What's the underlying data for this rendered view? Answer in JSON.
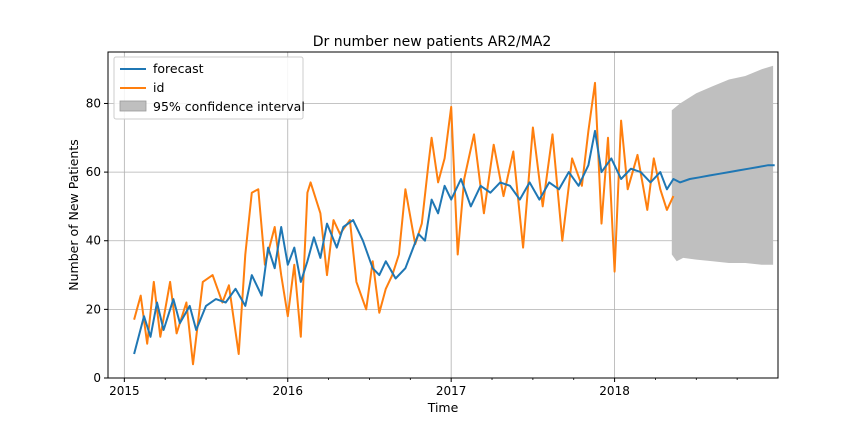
{
  "chart_data": {
    "type": "line",
    "title": "Dr number new patients AR2/MA2",
    "xlabel": "Time",
    "ylabel": "Number of New Patients",
    "xlim": [
      2014.9,
      2019.0
    ],
    "ylim": [
      0,
      95
    ],
    "grid": true,
    "legend_position": "top-left",
    "x_ticks": [
      {
        "value": 2015,
        "label": "2015"
      },
      {
        "value": 2016,
        "label": "2016"
      },
      {
        "value": 2017,
        "label": "2017"
      },
      {
        "value": 2018,
        "label": "2018"
      }
    ],
    "y_ticks": [
      {
        "value": 0,
        "label": "0"
      },
      {
        "value": 20,
        "label": "20"
      },
      {
        "value": 40,
        "label": "40"
      },
      {
        "value": 60,
        "label": "60"
      },
      {
        "value": 80,
        "label": "80"
      }
    ],
    "series": [
      {
        "name": "forecast",
        "color": "#1f77b4",
        "points": [
          [
            2015.06,
            7
          ],
          [
            2015.12,
            18
          ],
          [
            2015.16,
            12
          ],
          [
            2015.2,
            22
          ],
          [
            2015.24,
            14
          ],
          [
            2015.3,
            23
          ],
          [
            2015.34,
            16
          ],
          [
            2015.4,
            21
          ],
          [
            2015.44,
            14
          ],
          [
            2015.5,
            21
          ],
          [
            2015.56,
            23
          ],
          [
            2015.62,
            22
          ],
          [
            2015.68,
            26
          ],
          [
            2015.74,
            21
          ],
          [
            2015.78,
            30
          ],
          [
            2015.84,
            24
          ],
          [
            2015.88,
            38
          ],
          [
            2015.92,
            32
          ],
          [
            2015.96,
            44
          ],
          [
            2016.0,
            33
          ],
          [
            2016.04,
            38
          ],
          [
            2016.08,
            28
          ],
          [
            2016.12,
            34
          ],
          [
            2016.16,
            41
          ],
          [
            2016.2,
            35
          ],
          [
            2016.24,
            45
          ],
          [
            2016.3,
            38
          ],
          [
            2016.34,
            44
          ],
          [
            2016.4,
            46
          ],
          [
            2016.46,
            40
          ],
          [
            2016.52,
            32
          ],
          [
            2016.56,
            30
          ],
          [
            2016.6,
            34
          ],
          [
            2016.66,
            29
          ],
          [
            2016.72,
            32
          ],
          [
            2016.8,
            42
          ],
          [
            2016.84,
            40
          ],
          [
            2016.88,
            52
          ],
          [
            2016.92,
            48
          ],
          [
            2016.96,
            56
          ],
          [
            2017.0,
            52
          ],
          [
            2017.06,
            58
          ],
          [
            2017.12,
            50
          ],
          [
            2017.18,
            56
          ],
          [
            2017.24,
            54
          ],
          [
            2017.3,
            57
          ],
          [
            2017.36,
            56
          ],
          [
            2017.42,
            52
          ],
          [
            2017.48,
            57
          ],
          [
            2017.54,
            52
          ],
          [
            2017.6,
            57
          ],
          [
            2017.66,
            55
          ],
          [
            2017.72,
            60
          ],
          [
            2017.78,
            56
          ],
          [
            2017.84,
            62
          ],
          [
            2017.88,
            72
          ],
          [
            2017.92,
            60
          ],
          [
            2017.98,
            64
          ],
          [
            2018.04,
            58
          ],
          [
            2018.1,
            61
          ],
          [
            2018.16,
            60
          ],
          [
            2018.22,
            57
          ],
          [
            2018.28,
            60
          ],
          [
            2018.32,
            55
          ],
          [
            2018.36,
            58
          ],
          [
            2018.4,
            57
          ],
          [
            2018.46,
            58
          ],
          [
            2018.52,
            58.5
          ],
          [
            2018.58,
            59
          ],
          [
            2018.64,
            59.5
          ],
          [
            2018.7,
            60
          ],
          [
            2018.76,
            60.5
          ],
          [
            2018.82,
            61
          ],
          [
            2018.88,
            61.5
          ],
          [
            2018.94,
            62
          ],
          [
            2018.98,
            62
          ]
        ]
      },
      {
        "name": "id",
        "color": "#ff7f0e",
        "points": [
          [
            2015.06,
            17
          ],
          [
            2015.1,
            24
          ],
          [
            2015.14,
            10
          ],
          [
            2015.18,
            28
          ],
          [
            2015.22,
            12
          ],
          [
            2015.28,
            28
          ],
          [
            2015.32,
            13
          ],
          [
            2015.38,
            22
          ],
          [
            2015.42,
            4
          ],
          [
            2015.48,
            28
          ],
          [
            2015.54,
            30
          ],
          [
            2015.6,
            22
          ],
          [
            2015.64,
            27
          ],
          [
            2015.7,
            7
          ],
          [
            2015.74,
            36
          ],
          [
            2015.78,
            54
          ],
          [
            2015.82,
            55
          ],
          [
            2015.86,
            33
          ],
          [
            2015.92,
            44
          ],
          [
            2015.96,
            30
          ],
          [
            2016.0,
            18
          ],
          [
            2016.04,
            33
          ],
          [
            2016.08,
            12
          ],
          [
            2016.12,
            54
          ],
          [
            2016.14,
            57
          ],
          [
            2016.2,
            48
          ],
          [
            2016.24,
            30
          ],
          [
            2016.28,
            46
          ],
          [
            2016.32,
            42
          ],
          [
            2016.38,
            46
          ],
          [
            2016.42,
            28
          ],
          [
            2016.48,
            20
          ],
          [
            2016.52,
            34
          ],
          [
            2016.56,
            19
          ],
          [
            2016.6,
            26
          ],
          [
            2016.64,
            30
          ],
          [
            2016.68,
            36
          ],
          [
            2016.72,
            55
          ],
          [
            2016.78,
            39
          ],
          [
            2016.82,
            45
          ],
          [
            2016.86,
            62
          ],
          [
            2016.88,
            70
          ],
          [
            2016.92,
            57
          ],
          [
            2016.96,
            64
          ],
          [
            2017.0,
            79
          ],
          [
            2017.04,
            36
          ],
          [
            2017.08,
            58
          ],
          [
            2017.14,
            71
          ],
          [
            2017.2,
            48
          ],
          [
            2017.26,
            68
          ],
          [
            2017.32,
            53
          ],
          [
            2017.38,
            66
          ],
          [
            2017.44,
            38
          ],
          [
            2017.5,
            73
          ],
          [
            2017.56,
            50
          ],
          [
            2017.62,
            71
          ],
          [
            2017.68,
            40
          ],
          [
            2017.74,
            64
          ],
          [
            2017.8,
            56
          ],
          [
            2017.84,
            72
          ],
          [
            2017.88,
            86
          ],
          [
            2017.92,
            45
          ],
          [
            2017.96,
            70
          ],
          [
            2018.0,
            31
          ],
          [
            2018.04,
            75
          ],
          [
            2018.08,
            55
          ],
          [
            2018.14,
            65
          ],
          [
            2018.2,
            49
          ],
          [
            2018.24,
            64
          ],
          [
            2018.28,
            55
          ],
          [
            2018.32,
            49
          ],
          [
            2018.36,
            53
          ]
        ]
      }
    ],
    "confidence_interval": {
      "name": "95% confidence interval",
      "color": "#bfbfbf",
      "x_start": 2018.35,
      "x_end": 2018.97,
      "upper": [
        [
          2018.35,
          78
        ],
        [
          2018.4,
          80
        ],
        [
          2018.5,
          83
        ],
        [
          2018.6,
          85
        ],
        [
          2018.7,
          87
        ],
        [
          2018.8,
          88
        ],
        [
          2018.9,
          90
        ],
        [
          2018.97,
          91
        ]
      ],
      "lower": [
        [
          2018.35,
          36
        ],
        [
          2018.38,
          34
        ],
        [
          2018.42,
          35
        ],
        [
          2018.5,
          34.5
        ],
        [
          2018.6,
          34
        ],
        [
          2018.7,
          33.5
        ],
        [
          2018.8,
          33.5
        ],
        [
          2018.9,
          33
        ],
        [
          2018.97,
          33
        ]
      ]
    }
  }
}
